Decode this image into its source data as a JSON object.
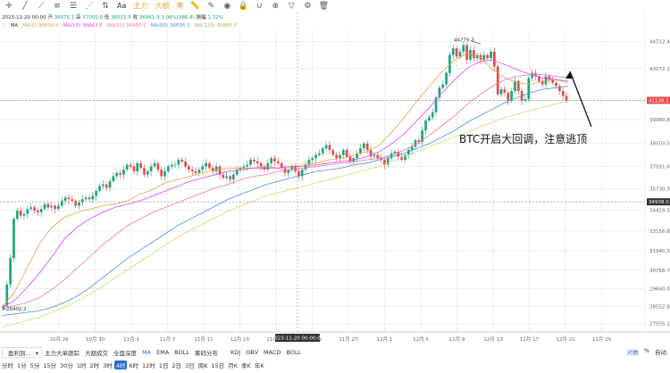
{
  "toolbar": {
    "icons": [
      "crosshair-icon",
      "trendline-icon",
      "ray-icon",
      "channel-icon",
      "fib-icon",
      "pattern-icon",
      "projection-icon",
      "text-icon"
    ],
    "text_icon": "Aa",
    "main_force": "主力",
    "big_order": "大额",
    "chip": "筹",
    "right_icons": [
      "ruler-icon",
      "brush-icon",
      "eye-icon",
      "lock-icon",
      "magnet-icon",
      "zoom-icon",
      "filter-icon",
      "settings-icon",
      "trash-icon"
    ]
  },
  "ohlc": {
    "datetime": "2023-11-20 00:00",
    "open_label": "开",
    "open": "36575.1",
    "high_label": "高",
    "high": "37000.0",
    "low_label": "低",
    "low": "36515.5",
    "close_label": "收",
    "close": "36961.9",
    "change": "1.06%(386.8)",
    "amp_label": "振幅",
    "amp": "1.32%"
  },
  "ma": {
    "label": "MA",
    "items": [
      {
        "text": "MA(5) 36629.9",
        "color": "#e6a23c"
      },
      {
        "text": "MA(10) 36683.5",
        "color": "#e040fb"
      },
      {
        "text": "MA(20) 36450.2",
        "color": "#f07a9e"
      },
      {
        "text": "MA(60) 36695.1",
        "color": "#4a90e2"
      },
      {
        "text": "MA(120) 35865.5",
        "color": "#c5e17a"
      }
    ]
  },
  "annotation": "BTC开启大回调，注意逃顶",
  "bottom_indicators": {
    "pl_label": "盈利到...",
    "items": [
      "主力大单跟踪",
      "大额成交",
      "全盘深度",
      "MA",
      "EMA",
      "BOLL",
      "筹码分布",
      "KDJ",
      "OBV",
      "MACD",
      "BOLL"
    ]
  },
  "right_controls": {
    "log": "对数",
    "pct": "%",
    "auto": "自动"
  },
  "timeframes": [
    "分时",
    "1分",
    "5分",
    "15分",
    "30分",
    "1时",
    "2时",
    "3时",
    "4时",
    "6时",
    "12时",
    "1日",
    "2日",
    "3日",
    "周K",
    "15日",
    "月K",
    "季K",
    "年K"
  ],
  "active_timeframe": "4时",
  "colors": {
    "up": "#1aa57e",
    "down": "#e94a4a",
    "grid": "#eeeeee",
    "axis_text": "#666666"
  },
  "chart_data": {
    "type": "candlestick",
    "y_axis": {
      "ticks": [
        "44712.4",
        "43072.1",
        "41128.1",
        "39960.8",
        "38503.5",
        "37091.0",
        "35730.3",
        "34419.5",
        "33156.8",
        "31940.5",
        "30768.7",
        "29640.0",
        "28552.6",
        "27505.1"
      ],
      "range": [
        27000,
        45400
      ]
    },
    "x_axis": {
      "ticks": [
        "10月 26",
        "10月 30",
        "11月 3",
        "11月 7",
        "11月 11",
        "11月 15",
        "11月 19",
        "11月 23",
        "11月 27",
        "12月 1",
        "12月 5",
        "12月 9",
        "12月 13",
        "12月 17",
        "12月 21",
        "12月 25"
      ],
      "highlight": "2023-11-20 00:00:00"
    },
    "markers": {
      "high": "44779.3",
      "low": "28402.2"
    },
    "price_tags": [
      {
        "value": "41128.1",
        "color": "#e94a4a"
      },
      {
        "value": "34938.0",
        "color": "#333333"
      }
    ],
    "crosshair": {
      "date": "2023-11-20 00:00:00",
      "price": "34938.0"
    },
    "daily_closes": [
      [
        28600,
        29900,
        31500,
        33900,
        34400
      ],
      [
        34100,
        34200,
        34500,
        34600,
        34400
      ],
      [
        34300,
        34500,
        34800,
        34600,
        34700
      ],
      [
        34500,
        34700,
        35000,
        35200,
        35100
      ],
      [
        35000,
        34700,
        34900,
        35100,
        35200
      ],
      [
        35100,
        35300,
        35600,
        35900,
        36000
      ],
      [
        35800,
        36200,
        36500,
        36700,
        36600
      ],
      [
        36900,
        37200,
        37100,
        36800,
        37300
      ],
      [
        37000,
        36600,
        36800,
        37100,
        37300
      ],
      [
        36900,
        36500,
        36800,
        37100,
        37200
      ],
      [
        37200,
        37500,
        37400,
        37100,
        36900
      ],
      [
        36800,
        36700,
        36900,
        37100,
        37300
      ],
      [
        37000,
        36800,
        37100,
        36600,
        36400
      ],
      [
        36500,
        36300,
        36600,
        36900,
        37000
      ],
      [
        37100,
        37200,
        37500,
        37400,
        37300
      ],
      [
        37100,
        36900,
        37300,
        37600,
        37400
      ],
      [
        37300,
        37000,
        36700,
        36900,
        37100
      ],
      [
        36800,
        36500,
        36900,
        37200,
        37500
      ],
      [
        37600,
        37800,
        37900,
        38200,
        38400
      ],
      [
        38100,
        37800,
        37600,
        37800,
        38100
      ],
      [
        37700,
        37400,
        37600,
        37900,
        38200
      ],
      [
        38500,
        38100,
        37700,
        37800,
        37600
      ],
      [
        37500,
        37200,
        37600,
        37900,
        38000
      ],
      [
        37700,
        37500,
        37800,
        38100,
        38300
      ],
      [
        38700,
        38600,
        39300,
        39900,
        40100
      ],
      [
        40400,
        41300,
        41900,
        42100,
        42800
      ],
      [
        43900,
        44300,
        43800,
        44100,
        44500
      ],
      [
        43600,
        44200,
        43700,
        43900,
        43600
      ],
      [
        43900,
        43700,
        44100,
        43200,
        41500
      ],
      [
        41800,
        41600,
        41100,
        41700,
        42300
      ],
      [
        41700,
        41100,
        41200,
        42500,
        42800
      ],
      [
        42600,
        42300,
        42100,
        42600,
        42400
      ],
      [
        42200,
        42000,
        41700,
        41400,
        41100
      ]
    ],
    "ma_lines": [
      {
        "name": "MA(5)",
        "color": "#e6a23c",
        "values": [
          28500,
          29400,
          30900,
          32400,
          33400,
          34000,
          34300,
          34500,
          34700,
          34800,
          35000,
          35400,
          35700,
          36100,
          36300,
          36500,
          36700,
          36900,
          37000,
          37000,
          37000,
          37100,
          37000,
          37100,
          37200,
          37300,
          37500,
          37600,
          37800,
          38000,
          38400,
          39200,
          40100,
          41100,
          42000,
          42900,
          43600,
          44000,
          43800,
          43000,
          42500,
          42200,
          42100,
          42300,
          42400,
          42200
        ]
      },
      {
        "name": "MA(10)",
        "color": "#e040fb",
        "values": [
          28500,
          28900,
          29700,
          30600,
          31600,
          32700,
          33400,
          33900,
          34300,
          34600,
          34800,
          35000,
          35300,
          35600,
          35900,
          36200,
          36400,
          36600,
          36800,
          36900,
          37000,
          37000,
          37000,
          37100,
          37100,
          37200,
          37300,
          37400,
          37500,
          37700,
          38000,
          38500,
          39100,
          39900,
          40700,
          41600,
          42400,
          43100,
          43500,
          43600,
          43300,
          43000,
          42700,
          42500,
          42400,
          42300
        ]
      },
      {
        "name": "MA(20)",
        "color": "#f07a9e",
        "values": [
          28500,
          28600,
          28800,
          29100,
          29600,
          30200,
          30900,
          31600,
          32300,
          32900,
          33500,
          33900,
          34300,
          34600,
          34900,
          35200,
          35500,
          35800,
          36000,
          36300,
          36500,
          36600,
          36800,
          36900,
          37000,
          37100,
          37200,
          37300,
          37400,
          37500,
          37600,
          37800,
          38100,
          38500,
          39000,
          39600,
          40200,
          40900,
          41500,
          42000,
          42400,
          42600,
          42700,
          42700,
          42600,
          42500
        ]
      },
      {
        "name": "MA(60)",
        "color": "#4a90e2",
        "values": [
          28000,
          28100,
          28200,
          28300,
          28500,
          28800,
          29200,
          29700,
          30300,
          30900,
          31500,
          32000,
          32500,
          33000,
          33500,
          33900,
          34300,
          34700,
          35100,
          35400,
          35700,
          36000,
          36200,
          36400,
          36600,
          36800,
          36900,
          37000,
          37200,
          37300,
          37500,
          37700,
          37900,
          38200,
          38500,
          38900,
          39300,
          39800,
          40200,
          40600,
          41000,
          41300,
          41600,
          41800,
          41900,
          42000
        ]
      },
      {
        "name": "MA(120)",
        "color": "#c5e17a",
        "values": [
          27300,
          27500,
          27700,
          27900,
          28200,
          28500,
          28900,
          29300,
          29800,
          30300,
          30800,
          31300,
          31800,
          32300,
          32800,
          33200,
          33600,
          34000,
          34400,
          34700,
          35000,
          35300,
          35500,
          35700,
          35900,
          36100,
          36300,
          36500,
          36700,
          36900,
          37100,
          37400,
          37700,
          38000,
          38300,
          38600,
          38900,
          39200,
          39500,
          39800,
          40100,
          40300,
          40500,
          40700,
          40900,
          41100
        ]
      }
    ]
  }
}
